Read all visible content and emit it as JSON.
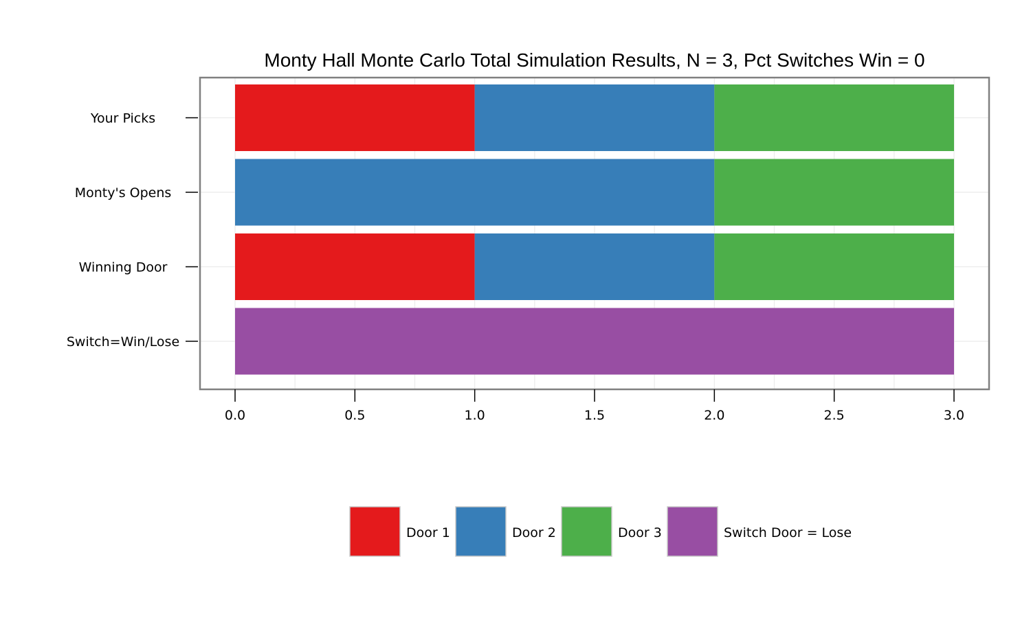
{
  "chart_data": {
    "type": "bar",
    "orientation": "horizontal",
    "stacked": true,
    "title": "Monty Hall Monte Carlo Total Simulation Results, N = 3, Pct Switches Win = 0",
    "xlabel": "",
    "ylabel": "",
    "xlim": [
      -0.15,
      3.15
    ],
    "x_ticks": [
      "0.0",
      "0.5",
      "1.0",
      "1.5",
      "2.0",
      "2.5",
      "3.0"
    ],
    "grid": true,
    "legend_position": "bottom",
    "categories": [
      "Your Picks",
      "Monty's Opens",
      "Winning Door",
      "Switch=Win/Lose"
    ],
    "series": [
      {
        "name": "Door 1",
        "color": "#e41a1c",
        "values": [
          1,
          0,
          1,
          0
        ]
      },
      {
        "name": "Door 2",
        "color": "#377eb8",
        "values": [
          1,
          2,
          1,
          0
        ]
      },
      {
        "name": "Door 3",
        "color": "#4daf4a",
        "values": [
          1,
          1,
          1,
          0
        ]
      },
      {
        "name": "Switch Door = Lose",
        "color": "#984ea3",
        "values": [
          0,
          0,
          0,
          3
        ]
      }
    ]
  }
}
